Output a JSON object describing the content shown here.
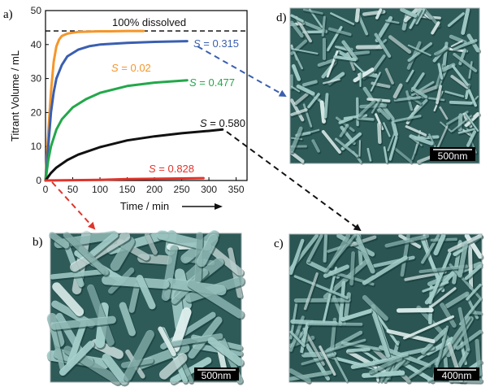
{
  "chart_data": {
    "type": "line",
    "panel_label": "a)",
    "xlabel": "Time / min",
    "ylabel": "Titrant Volume / mL",
    "xlim": [
      0,
      370
    ],
    "ylim": [
      0,
      50
    ],
    "xticks": [
      0,
      50,
      100,
      150,
      200,
      250,
      300,
      350
    ],
    "yticks": [
      0,
      10,
      20,
      30,
      40,
      50
    ],
    "reference_line": {
      "label": "100% dissolved",
      "y": 44
    },
    "series": [
      {
        "name": "S = 0.02",
        "prefix": "S",
        "suffix": " = 0.02",
        "color": "#f5962a",
        "x": [
          0,
          5,
          10,
          15,
          20,
          25,
          30,
          40,
          50,
          60,
          80,
          100,
          120,
          150,
          180
        ],
        "y": [
          0,
          14,
          26,
          35,
          39.5,
          41.5,
          42.5,
          43.2,
          43.5,
          43.7,
          43.8,
          43.9,
          43.9,
          44,
          44
        ]
      },
      {
        "name": "S = 0.315",
        "prefix": "S",
        "suffix": " = 0.315",
        "color": "#3a5fb0",
        "x": [
          0,
          5,
          10,
          15,
          20,
          30,
          40,
          60,
          80,
          100,
          150,
          200,
          260
        ],
        "y": [
          0,
          10,
          20,
          26,
          30,
          34,
          36.5,
          38.5,
          39.5,
          40,
          40.5,
          40.8,
          41
        ]
      },
      {
        "name": "S = 0.477",
        "prefix": "S",
        "suffix": " = 0.477",
        "color": "#22a84a",
        "x": [
          0,
          5,
          10,
          20,
          30,
          50,
          75,
          100,
          150,
          200,
          260
        ],
        "y": [
          0,
          6,
          10,
          15,
          18,
          21.5,
          24,
          25.8,
          27.8,
          28.8,
          29.5
        ]
      },
      {
        "name": "S = 0.580",
        "prefix": "S",
        "suffix": " = 0.580",
        "color": "#111111",
        "x": [
          0,
          10,
          20,
          40,
          60,
          100,
          150,
          200,
          250,
          300,
          325
        ],
        "y": [
          0,
          2.2,
          3.8,
          6,
          7.6,
          9.8,
          11.8,
          13,
          13.9,
          14.6,
          15
        ]
      },
      {
        "name": "S = 0.828",
        "prefix": "S",
        "suffix": " = 0.828",
        "color": "#e0352b",
        "x": [
          0,
          100,
          150,
          200,
          250,
          290
        ],
        "y": [
          0,
          0.2,
          0.4,
          0.5,
          0.6,
          0.7
        ]
      }
    ]
  },
  "micrographs": [
    {
      "panel": "d)",
      "scale_bar": "500nm",
      "points_to": "S = 0.315"
    },
    {
      "panel": "b)",
      "scale_bar": "500nm",
      "points_to": "S = 0.828"
    },
    {
      "panel": "c)",
      "scale_bar": "400nm",
      "points_to": "S = 0.580"
    }
  ],
  "colors": {
    "micrograph_bg": "#2e5a58",
    "micrograph_rod": "#a9d3cf",
    "micrograph_highlight": "#e3f4f2",
    "micrograph_shadow": "#123836",
    "arrow_to_d": "#3a5fb0",
    "arrow_to_b": "#e0352b",
    "arrow_to_c": "#111111"
  }
}
